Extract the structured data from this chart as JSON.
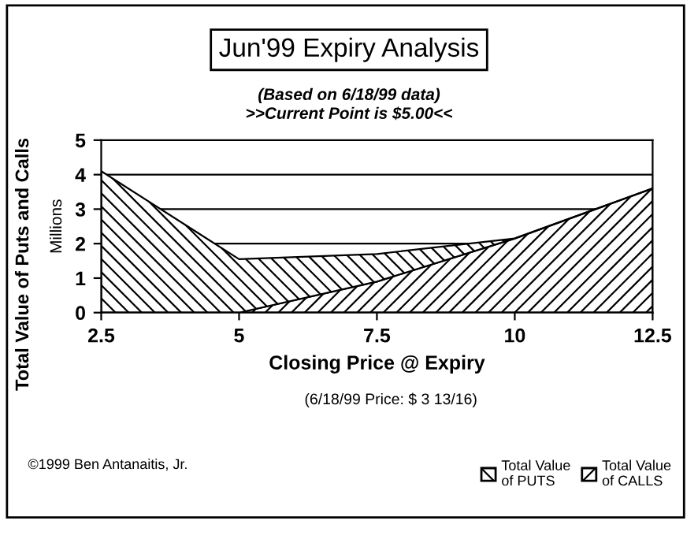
{
  "chart_data": {
    "type": "area",
    "title": "Jun'99 Expiry Analysis",
    "subtitle": "(Based on 6/18/99 data)\n>>Current Point is $5.00<<",
    "xlabel": "Closing Price @ Expiry",
    "ylabel": "Total Value of Puts and Calls",
    "y2label": "Millions",
    "x": [
      2.5,
      5,
      7.5,
      10,
      12.5
    ],
    "stacked": true,
    "series": [
      {
        "name": "Total Value\nof CALLS",
        "color": "#000000",
        "values": [
          0,
          0,
          0.9,
          2.15,
          3.6
        ]
      },
      {
        "name": "Total Value\nof PUTS",
        "color": "#000000",
        "values": [
          4.1,
          1.55,
          0.8,
          0,
          0
        ]
      }
    ],
    "xlim": [
      2.5,
      12.5
    ],
    "xticks": [
      2.5,
      5,
      7.5,
      10,
      12.5
    ],
    "ylim": [
      0,
      5
    ],
    "yticks": [
      0,
      1,
      2,
      3,
      4,
      5
    ],
    "grid": "y",
    "legend": "bottom right",
    "annotations": [
      "(6/18/99 Price: $ 3 13/16)",
      "©1999 Ben Antanaitis, Jr."
    ]
  }
}
